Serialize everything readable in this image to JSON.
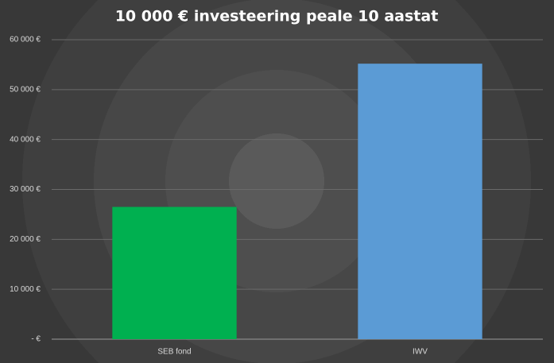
{
  "chart_data": {
    "type": "bar",
    "title": "10 000 € investeering peale 10 aastat",
    "categories": [
      "SEB fond",
      "IWV"
    ],
    "values": [
      26500,
      55200
    ],
    "colors": [
      "#00b050",
      "#5b9bd5"
    ],
    "ylim": [
      0,
      60000
    ],
    "yticks": [
      {
        "value": 0,
        "label": "-  €"
      },
      {
        "value": 10000,
        "label": "10 000 €"
      },
      {
        "value": 20000,
        "label": "20 000 €"
      },
      {
        "value": 30000,
        "label": "30 000 €"
      },
      {
        "value": 40000,
        "label": "40 000 €"
      },
      {
        "value": 50000,
        "label": "50 000 €"
      },
      {
        "value": 60000,
        "label": "60 000 €"
      }
    ],
    "grid": true
  }
}
